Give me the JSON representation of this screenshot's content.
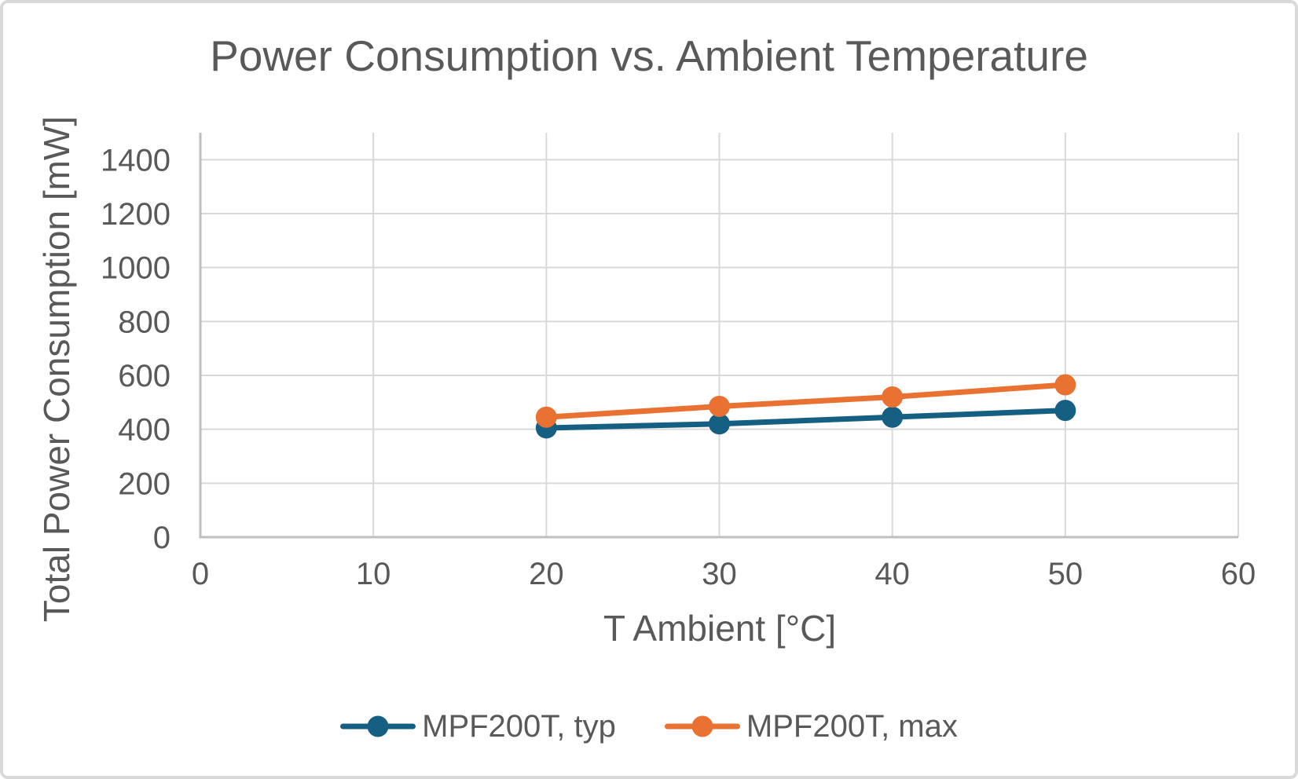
{
  "chart_data": {
    "type": "line",
    "title": "Power Consumption vs. Ambient Temperature",
    "xlabel": "T Ambient [°C]",
    "ylabel": "Total Power Consumption [mW]",
    "x": [
      20,
      30,
      40,
      50
    ],
    "series": [
      {
        "name": "MPF200T, typ",
        "color": "#156082",
        "values": [
          405,
          420,
          445,
          470
        ]
      },
      {
        "name": "MPF200T, max",
        "color": "#E97132",
        "values": [
          445,
          485,
          520,
          565
        ]
      }
    ],
    "xlim": [
      0,
      60
    ],
    "ylim": [
      0,
      1500
    ],
    "x_ticks": [
      0,
      10,
      20,
      30,
      40,
      50,
      60
    ],
    "y_ticks": [
      0,
      200,
      400,
      600,
      800,
      1000,
      1200,
      1400
    ],
    "grid": true,
    "legend_position": "bottom"
  },
  "appearance": {
    "background": "#FFFFFF",
    "border_color": "#D9D9D9",
    "text_color": "#595959",
    "gridline_color": "#D9D9D9",
    "axis_line_color": "#BFBFBF"
  }
}
